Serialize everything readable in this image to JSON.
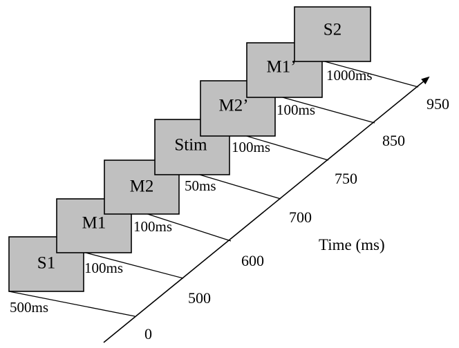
{
  "frames": [
    {
      "label": "S1",
      "duration": "500ms",
      "onset": "0"
    },
    {
      "label": "M1",
      "duration": "100ms",
      "onset": "500"
    },
    {
      "label": "M2",
      "duration": "100ms",
      "onset": "600"
    },
    {
      "label": "Stim",
      "duration": "50ms",
      "onset": "700"
    },
    {
      "label": "M2’",
      "duration": "100ms",
      "onset": "750"
    },
    {
      "label": "M1’",
      "duration": "100ms",
      "onset": "850"
    },
    {
      "label": "S2",
      "duration": "1000ms",
      "onset": "950"
    }
  ],
  "axis": {
    "title": "Time (ms)"
  }
}
